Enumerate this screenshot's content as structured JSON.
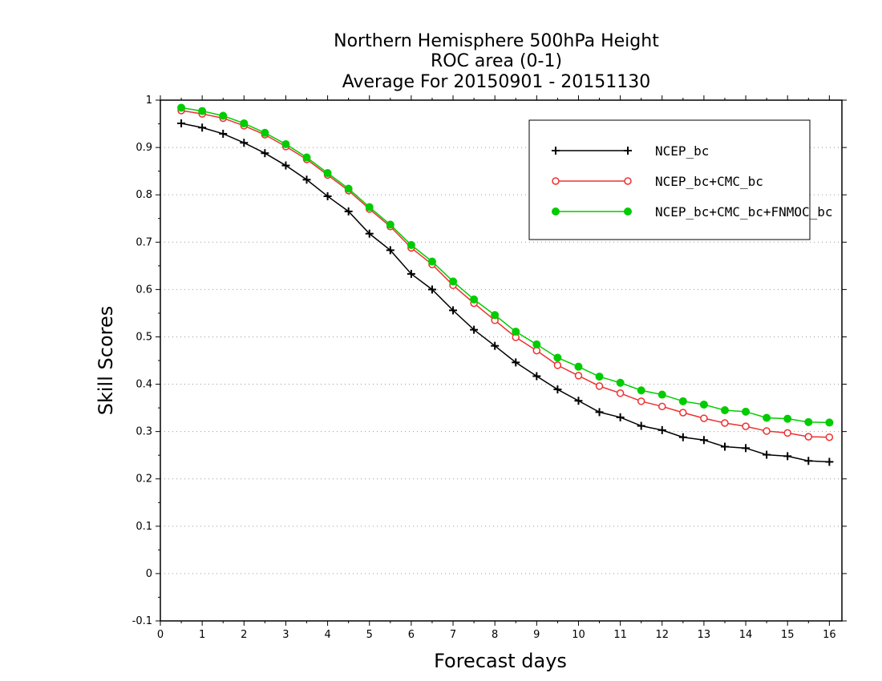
{
  "chart_data": {
    "type": "line",
    "title": [
      "Northern Hemisphere 500hPa Height",
      "ROC area (0-1)",
      "Average For 20150901 - 20151130"
    ],
    "xlabel": "Forecast days",
    "ylabel": "Skill Scores",
    "xlim": [
      0,
      16.3
    ],
    "ylim": [
      -0.1,
      1
    ],
    "xticks": [
      0,
      1,
      2,
      3,
      4,
      5,
      6,
      7,
      8,
      9,
      10,
      11,
      12,
      13,
      14,
      15,
      16
    ],
    "yticks": [
      -0.1,
      0,
      0.1,
      0.2,
      0.3,
      0.4,
      0.5,
      0.6,
      0.7,
      0.8,
      0.9,
      1
    ],
    "ytick_labels": [
      "-0.1",
      "0",
      "0.1",
      "0.2",
      "0.3",
      "0.4",
      "0.5",
      "0.6",
      "0.7",
      "0.8",
      "0.9",
      "1"
    ],
    "grid": "horizontal dotted",
    "legend_position": "top-right",
    "x": [
      0.5,
      1,
      1.5,
      2,
      2.5,
      3,
      3.5,
      4,
      4.5,
      5,
      5.5,
      6,
      6.5,
      7,
      7.5,
      8,
      8.5,
      9,
      9.5,
      10,
      10.5,
      11,
      11.5,
      12,
      12.5,
      13,
      13.5,
      14,
      14.5,
      15,
      15.5,
      16
    ],
    "series": [
      {
        "name": "NCEP_bc",
        "color": "#000000",
        "marker": "plus",
        "values": [
          0.951,
          0.942,
          0.929,
          0.91,
          0.888,
          0.862,
          0.832,
          0.797,
          0.765,
          0.718,
          0.683,
          0.633,
          0.6,
          0.556,
          0.515,
          0.481,
          0.446,
          0.417,
          0.389,
          0.365,
          0.341,
          0.33,
          0.312,
          0.303,
          0.288,
          0.282,
          0.268,
          0.265,
          0.251,
          0.248,
          0.238,
          0.236
        ]
      },
      {
        "name": "NCEP_bc+CMC_bc",
        "color": "#ee3030",
        "marker": "open-circle",
        "values": [
          0.978,
          0.971,
          0.962,
          0.946,
          0.927,
          0.902,
          0.875,
          0.842,
          0.809,
          0.77,
          0.733,
          0.688,
          0.653,
          0.609,
          0.571,
          0.535,
          0.499,
          0.471,
          0.44,
          0.418,
          0.396,
          0.381,
          0.364,
          0.353,
          0.34,
          0.328,
          0.318,
          0.311,
          0.301,
          0.297,
          0.289,
          0.288
        ]
      },
      {
        "name": "NCEP_bc+CMC_bc+FNMOC_bc",
        "color": "#00cc00",
        "marker": "filled-circle",
        "values": [
          0.984,
          0.977,
          0.967,
          0.951,
          0.931,
          0.907,
          0.879,
          0.846,
          0.813,
          0.774,
          0.737,
          0.694,
          0.659,
          0.617,
          0.579,
          0.546,
          0.511,
          0.484,
          0.456,
          0.437,
          0.416,
          0.403,
          0.387,
          0.378,
          0.364,
          0.357,
          0.345,
          0.342,
          0.329,
          0.327,
          0.32,
          0.319
        ]
      }
    ]
  }
}
